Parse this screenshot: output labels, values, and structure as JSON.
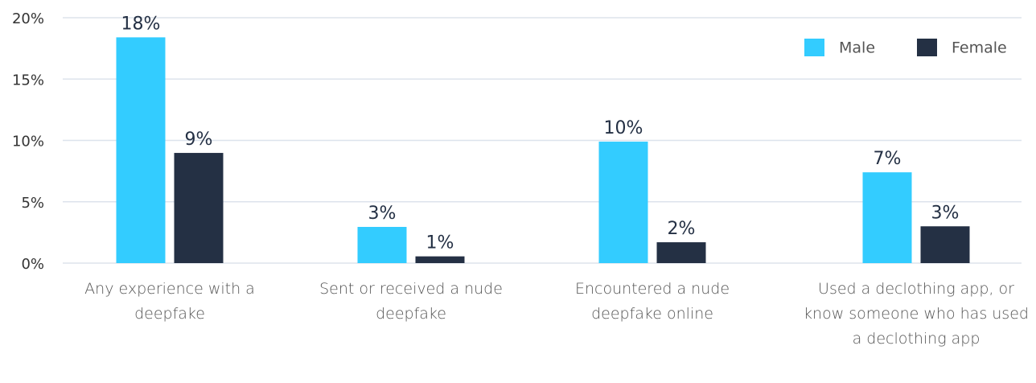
{
  "chart_data": {
    "type": "bar",
    "categories": [
      "Any experience with a deepfake",
      "Sent or received a nude deepfake",
      "Encountered a nude deepfake online",
      "Used a declothing app, or know someone who has used a declothing app"
    ],
    "series": [
      {
        "name": "Male",
        "color": "#33ccff",
        "values": [
          18.4,
          2.95,
          9.9,
          7.4
        ],
        "value_labels": [
          "18%",
          "3%",
          "10%",
          "7%"
        ]
      },
      {
        "name": "Female",
        "color": "#243044",
        "values": [
          8.98,
          0.55,
          1.7,
          3.0
        ],
        "value_labels": [
          "9%",
          "1%",
          "2%",
          "3%"
        ]
      }
    ],
    "ylim": [
      0,
      20
    ],
    "yticks": [
      {
        "value": 0,
        "label": "0%"
      },
      {
        "value": 5,
        "label": "5%"
      },
      {
        "value": 10,
        "label": "10%"
      },
      {
        "value": 15,
        "label": "15%"
      },
      {
        "value": 20,
        "label": "20%"
      }
    ],
    "grid": true,
    "legend": "top-right"
  }
}
